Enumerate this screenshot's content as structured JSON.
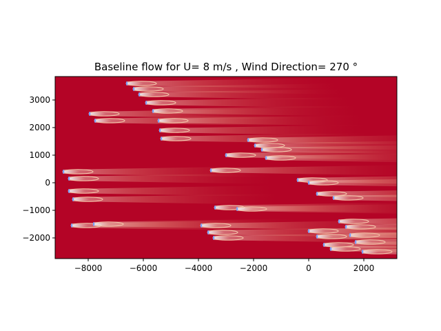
{
  "chart_data": {
    "type": "heatmap",
    "title": "Baseline flow for U= 8 m/s  ,  Wind Direction= 270  °",
    "xlabel": "",
    "ylabel": "",
    "xlim": [
      -9200,
      3200
    ],
    "ylim": [
      -2750,
      3850
    ],
    "x_ticks": [
      -8000,
      -6000,
      -4000,
      -2000,
      0,
      2000
    ],
    "x_tick_labels": [
      "−8000",
      "−6000",
      "−4000",
      "−2000",
      "0",
      "2000"
    ],
    "y_ticks": [
      -2000,
      -1000,
      0,
      1000,
      2000,
      3000
    ],
    "y_tick_labels": [
      "−2000",
      "−1000",
      "0",
      "1000",
      "2000",
      "3000"
    ],
    "free_stream_color": "#b40426",
    "wake_color": "#f5c4ac",
    "rotor_color": "#7b9ff9",
    "colormap": "coolwarm",
    "grid": false,
    "turbines": [
      {
        "x": -6600,
        "y": 3600
      },
      {
        "x": -6350,
        "y": 3400
      },
      {
        "x": -6150,
        "y": 3200
      },
      {
        "x": -5900,
        "y": 2900
      },
      {
        "x": -7950,
        "y": 2500
      },
      {
        "x": -7750,
        "y": 2250
      },
      {
        "x": -5650,
        "y": 2600
      },
      {
        "x": -5450,
        "y": 2250
      },
      {
        "x": -5400,
        "y": 1900
      },
      {
        "x": -5350,
        "y": 1600
      },
      {
        "x": -8900,
        "y": 400
      },
      {
        "x": -8700,
        "y": 150
      },
      {
        "x": -8700,
        "y": -300
      },
      {
        "x": -8550,
        "y": -600
      },
      {
        "x": -8600,
        "y": -1550
      },
      {
        "x": -7800,
        "y": -1500
      },
      {
        "x": -3550,
        "y": 450
      },
      {
        "x": -3000,
        "y": 1000
      },
      {
        "x": -2200,
        "y": 1550
      },
      {
        "x": -1950,
        "y": 1350
      },
      {
        "x": -1700,
        "y": 1200
      },
      {
        "x": -1550,
        "y": 900
      },
      {
        "x": -3400,
        "y": -900
      },
      {
        "x": -2600,
        "y": -950
      },
      {
        "x": -3900,
        "y": -1550
      },
      {
        "x": -3650,
        "y": -1800
      },
      {
        "x": -3450,
        "y": -2000
      },
      {
        "x": -400,
        "y": 100
      },
      {
        "x": 0,
        "y": 0
      },
      {
        "x": 300,
        "y": -400
      },
      {
        "x": 900,
        "y": -550
      },
      {
        "x": 1100,
        "y": -1400
      },
      {
        "x": 1350,
        "y": -1600
      },
      {
        "x": 1500,
        "y": -1900
      },
      {
        "x": 1700,
        "y": -2150
      },
      {
        "x": 1950,
        "y": -2500
      },
      {
        "x": 0,
        "y": -1750
      },
      {
        "x": 300,
        "y": -1950
      },
      {
        "x": 550,
        "y": -2250
      },
      {
        "x": 800,
        "y": -2400
      }
    ]
  }
}
